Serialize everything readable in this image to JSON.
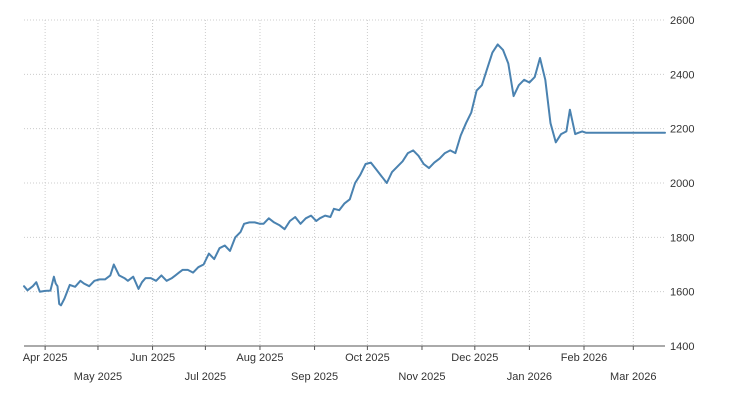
{
  "chart_data": {
    "type": "line",
    "title": "",
    "xlabel": "",
    "ylabel": "",
    "ylim": [
      1400,
      2600
    ],
    "y_ticks": [
      1400,
      1600,
      1800,
      2000,
      2200,
      2400,
      2600
    ],
    "y_axis_side": "right",
    "grid": true,
    "grid_style": "dotted",
    "x_ticks": [
      {
        "label": "Apr 2025",
        "date": "2025-04-01"
      },
      {
        "label": "May 2025",
        "date": "2025-05-01"
      },
      {
        "label": "Jun 2025",
        "date": "2025-06-01"
      },
      {
        "label": "Jul 2025",
        "date": "2025-07-01"
      },
      {
        "label": "Aug 2025",
        "date": "2025-08-01"
      },
      {
        "label": "Sep 2025",
        "date": "2025-09-01"
      },
      {
        "label": "Oct 2025",
        "date": "2025-10-01"
      },
      {
        "label": "Nov 2025",
        "date": "2025-11-01"
      },
      {
        "label": "Dec 2025",
        "date": "2025-12-01"
      },
      {
        "label": "Jan 2026",
        "date": "2026-01-01"
      },
      {
        "label": "Feb 2026",
        "date": "2026-02-01"
      },
      {
        "label": "Mar 2026",
        "date": "2026-03-01"
      }
    ],
    "x_range": [
      "2025-03-20",
      "2026-03-19"
    ],
    "colors": {
      "line": "#4a82b0",
      "grid": "#cccccc",
      "axis": "#555555",
      "text": "#333333"
    },
    "series": [
      {
        "x": [
          "2025-03-20",
          "2025-03-22",
          "2025-03-25",
          "2025-03-27",
          "2025-03-29",
          "2025-04-01",
          "2025-04-04",
          "2025-04-06",
          "2025-04-07",
          "2025-04-08",
          "2025-04-09",
          "2025-04-10",
          "2025-04-12",
          "2025-04-15",
          "2025-04-18",
          "2025-04-21",
          "2025-04-23",
          "2025-04-26",
          "2025-04-29",
          "2025-05-02",
          "2025-05-05",
          "2025-05-08",
          "2025-05-10",
          "2025-05-13",
          "2025-05-16",
          "2025-05-18",
          "2025-05-21",
          "2025-05-24",
          "2025-05-26",
          "2025-05-28",
          "2025-05-31",
          "2025-06-03",
          "2025-06-06",
          "2025-06-09",
          "2025-06-12",
          "2025-06-14",
          "2025-06-16",
          "2025-06-18",
          "2025-06-21",
          "2025-06-24",
          "2025-06-27",
          "2025-06-30",
          "2025-07-03",
          "2025-07-06",
          "2025-07-09",
          "2025-07-12",
          "2025-07-15",
          "2025-07-18",
          "2025-07-21",
          "2025-07-23",
          "2025-07-26",
          "2025-07-29",
          "2025-08-01",
          "2025-08-03",
          "2025-08-06",
          "2025-08-09",
          "2025-08-12",
          "2025-08-15",
          "2025-08-18",
          "2025-08-21",
          "2025-08-24",
          "2025-08-27",
          "2025-08-30",
          "2025-09-02",
          "2025-09-04",
          "2025-09-07",
          "2025-09-10",
          "2025-09-12",
          "2025-09-15",
          "2025-09-18",
          "2025-09-21",
          "2025-09-24",
          "2025-09-27",
          "2025-09-30",
          "2025-10-03",
          "2025-10-06",
          "2025-10-09",
          "2025-10-12",
          "2025-10-15",
          "2025-10-18",
          "2025-10-21",
          "2025-10-24",
          "2025-10-27",
          "2025-10-30",
          "2025-11-02",
          "2025-11-05",
          "2025-11-08",
          "2025-11-11",
          "2025-11-14",
          "2025-11-17",
          "2025-11-20",
          "2025-11-23",
          "2025-11-26",
          "2025-11-29",
          "2025-12-02",
          "2025-12-05",
          "2025-12-08",
          "2025-12-11",
          "2025-12-14",
          "2025-12-17",
          "2025-12-20",
          "2025-12-23",
          "2025-12-26",
          "2025-12-29",
          "2026-01-01",
          "2026-01-04",
          "2026-01-07",
          "2026-01-10",
          "2026-01-13",
          "2026-01-16",
          "2026-01-19",
          "2026-01-22",
          "2026-01-24",
          "2026-01-27",
          "2026-01-29",
          "2026-01-31",
          "2026-02-02",
          "2026-02-04",
          "2026-02-06",
          "2026-02-08",
          "2026-02-10",
          "2026-02-12",
          "2026-02-14",
          "2026-02-16",
          "2026-02-18",
          "2026-02-20",
          "2026-02-22",
          "2026-02-24",
          "2026-02-26",
          "2026-02-28",
          "2026-03-02",
          "2026-03-04",
          "2026-03-06",
          "2026-03-08",
          "2026-03-10",
          "2026-03-12",
          "2026-03-14",
          "2026-03-16",
          "2026-03-19"
        ],
        "values": [
          1620,
          1605,
          1620,
          1635,
          1600,
          1603,
          1604,
          1655,
          1630,
          1620,
          1555,
          1550,
          1575,
          1625,
          1618,
          1640,
          1630,
          1620,
          1640,
          1645,
          1645,
          1660,
          1700,
          1660,
          1650,
          1640,
          1655,
          1610,
          1635,
          1650,
          1650,
          1640,
          1660,
          1640,
          1650,
          1660,
          1670,
          1680,
          1680,
          1670,
          1690,
          1700,
          1740,
          1720,
          1760,
          1770,
          1750,
          1800,
          1820,
          1850,
          1855,
          1855,
          1850,
          1850,
          1870,
          1855,
          1845,
          1830,
          1860,
          1875,
          1850,
          1870,
          1880,
          1860,
          1870,
          1880,
          1875,
          1905,
          1900,
          1925,
          1940,
          2000,
          2030,
          2070,
          2075,
          2050,
          2025,
          2000,
          2040,
          2060,
          2080,
          2110,
          2120,
          2100,
          2070,
          2055,
          2075,
          2090,
          2110,
          2120,
          2110,
          2175,
          2220,
          2260,
          2340,
          2360,
          2420,
          2480,
          2510,
          2490,
          2440,
          2320,
          2360,
          2380,
          2370,
          2390,
          2460,
          2380,
          2220,
          2150,
          2180,
          2190,
          2270,
          2180,
          2185,
          2190,
          2185,
          2185,
          2185,
          2185,
          2185,
          2185,
          2185,
          2185,
          2185,
          2185,
          2185,
          2185,
          2185,
          2185,
          2185,
          2185,
          2185,
          2185,
          2185,
          2185,
          2185,
          2185,
          2185
        ]
      }
    ]
  }
}
